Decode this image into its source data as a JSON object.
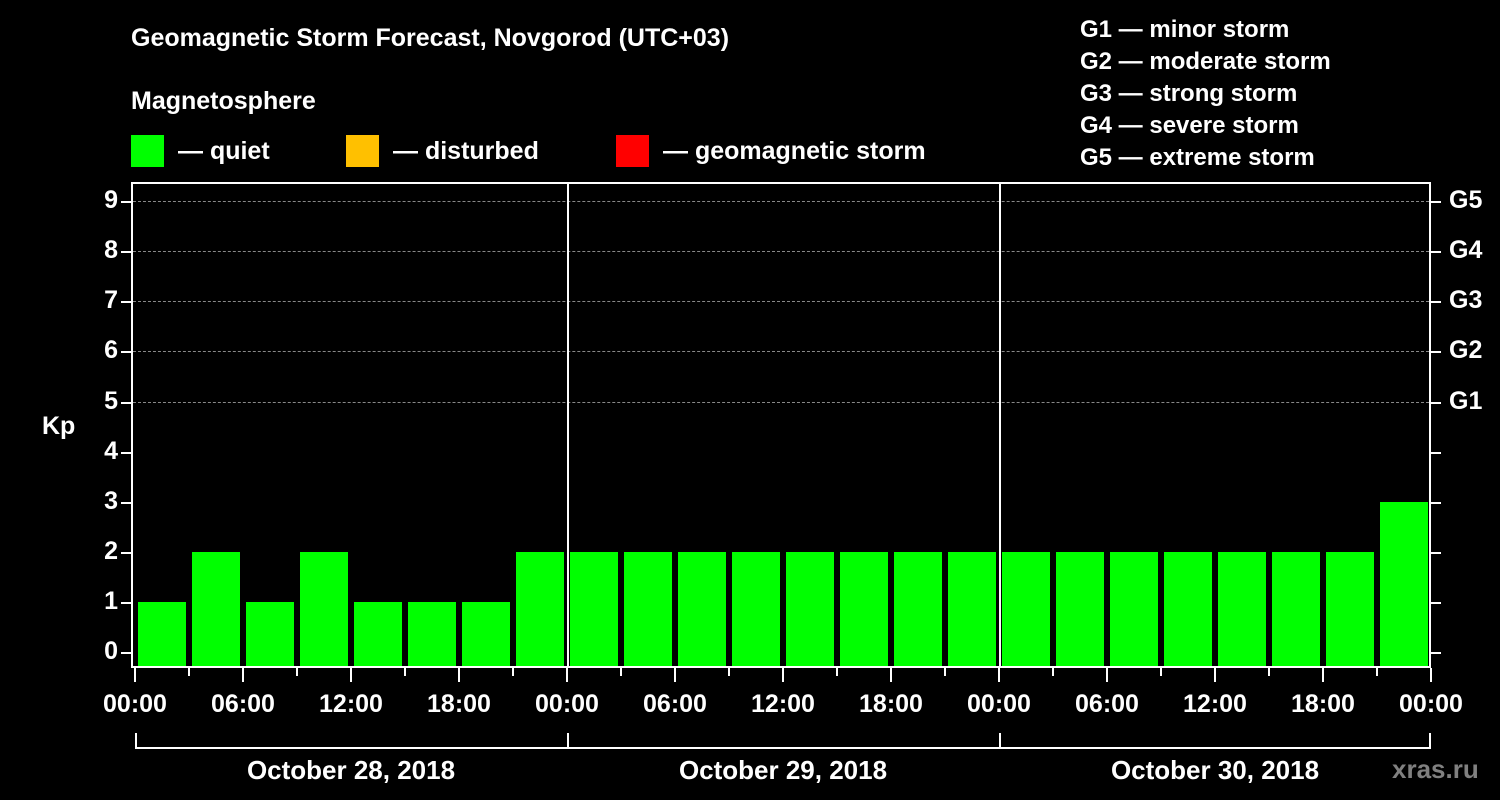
{
  "header": {
    "title": "Geomagnetic Storm Forecast, Novgorod (UTC+03)",
    "subtitle": "Magnetosphere"
  },
  "legend": {
    "items": [
      {
        "label": "— quiet",
        "color": "#00ff00"
      },
      {
        "label": "— disturbed",
        "color": "#ffc000"
      },
      {
        "label": "— geomagnetic storm",
        "color": "#ff0000"
      }
    ]
  },
  "storm_scale": {
    "items": [
      "G1 — minor storm",
      "G2 — moderate storm",
      "G3 — strong storm",
      "G4 — severe storm",
      "G5 — extreme storm"
    ]
  },
  "axes": {
    "ylabel": "Kp",
    "y_ticks": [
      "0",
      "1",
      "2",
      "3",
      "4",
      "5",
      "6",
      "7",
      "8",
      "9"
    ],
    "g_ticks": [
      "G1",
      "G2",
      "G3",
      "G4",
      "G5"
    ],
    "x_ticks": [
      "00:00",
      "06:00",
      "12:00",
      "18:00",
      "00:00",
      "06:00",
      "12:00",
      "18:00",
      "00:00",
      "06:00",
      "12:00",
      "18:00",
      "00:00"
    ],
    "days": [
      "October 28, 2018",
      "October 29, 2018",
      "October 30, 2018"
    ]
  },
  "watermark": "xras.ru",
  "chart_data": {
    "type": "bar",
    "title": "Geomagnetic Storm Forecast, Novgorod (UTC+03)",
    "subtitle": "Magnetosphere",
    "xlabel": "",
    "ylabel": "Kp",
    "ylim": [
      0,
      9
    ],
    "grid": "dashed horizontal at Kp 5-9",
    "legend_position": "top",
    "legend": [
      "quiet",
      "disturbed",
      "geomagnetic storm"
    ],
    "secondary_y_labels": {
      "5": "G1",
      "6": "G2",
      "7": "G3",
      "8": "G4",
      "9": "G5"
    },
    "categories": [
      "2018-10-28 00:00",
      "2018-10-28 03:00",
      "2018-10-28 06:00",
      "2018-10-28 09:00",
      "2018-10-28 12:00",
      "2018-10-28 15:00",
      "2018-10-28 18:00",
      "2018-10-28 21:00",
      "2018-10-29 00:00",
      "2018-10-29 03:00",
      "2018-10-29 06:00",
      "2018-10-29 09:00",
      "2018-10-29 12:00",
      "2018-10-29 15:00",
      "2018-10-29 18:00",
      "2018-10-29 21:00",
      "2018-10-30 00:00",
      "2018-10-30 03:00",
      "2018-10-30 06:00",
      "2018-10-30 09:00",
      "2018-10-30 12:00",
      "2018-10-30 15:00",
      "2018-10-30 18:00",
      "2018-10-30 21:00"
    ],
    "values": [
      1,
      2,
      1,
      2,
      1,
      1,
      1,
      2,
      2,
      2,
      2,
      2,
      2,
      2,
      2,
      2,
      2,
      2,
      2,
      2,
      2,
      2,
      2,
      3
    ],
    "status": [
      "quiet",
      "quiet",
      "quiet",
      "quiet",
      "quiet",
      "quiet",
      "quiet",
      "quiet",
      "quiet",
      "quiet",
      "quiet",
      "quiet",
      "quiet",
      "quiet",
      "quiet",
      "quiet",
      "quiet",
      "quiet",
      "quiet",
      "quiet",
      "quiet",
      "quiet",
      "quiet",
      "quiet"
    ]
  }
}
